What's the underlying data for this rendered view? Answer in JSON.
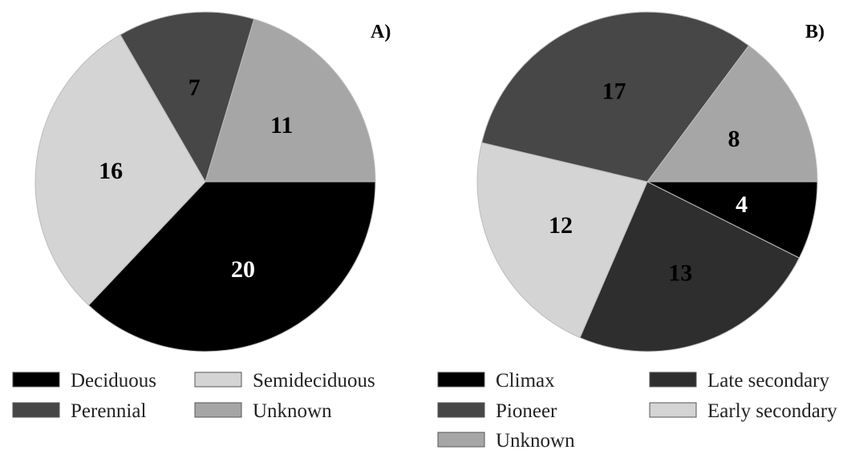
{
  "chart_data": [
    {
      "type": "pie",
      "panel_label": "A)",
      "slices": [
        {
          "label": "Deciduous",
          "value": 20,
          "color": "#000000",
          "text_color": "#ffffff"
        },
        {
          "label": "Semideciduous",
          "value": 16,
          "color": "#d4d4d4",
          "text_color": "#000000"
        },
        {
          "label": "Perennial",
          "value": 7,
          "color": "#474747",
          "text_color": "#000000"
        },
        {
          "label": "Unknown",
          "value": 11,
          "color": "#a6a6a6",
          "text_color": "#000000"
        }
      ],
      "legend": [
        {
          "label": "Deciduous",
          "color": "#000000"
        },
        {
          "label": "Semideciduous",
          "color": "#d4d4d4"
        },
        {
          "label": "Perennial",
          "color": "#474747"
        },
        {
          "label": "Unknown",
          "color": "#a6a6a6"
        }
      ],
      "legend_placement": "bottom"
    },
    {
      "type": "pie",
      "panel_label": "B)",
      "slices": [
        {
          "label": "Climax",
          "value": 4,
          "color": "#000000",
          "text_color": "#ffffff"
        },
        {
          "label": "Late secondary",
          "value": 13,
          "color": "#2e2e2e",
          "text_color": "#000000"
        },
        {
          "label": "Early secondary",
          "value": 12,
          "color": "#d4d4d4",
          "text_color": "#000000"
        },
        {
          "label": "Pioneer",
          "value": 17,
          "color": "#474747",
          "text_color": "#000000"
        },
        {
          "label": "Unknown",
          "value": 8,
          "color": "#a6a6a6",
          "text_color": "#000000"
        }
      ],
      "legend": [
        {
          "label": "Climax",
          "color": "#000000"
        },
        {
          "label": "Late secondary",
          "color": "#2e2e2e"
        },
        {
          "label": "Pioneer",
          "color": "#474747"
        },
        {
          "label": "Early secondary",
          "color": "#d4d4d4"
        },
        {
          "label": "Unknown",
          "color": "#a6a6a6"
        }
      ],
      "legend_placement": "bottom"
    }
  ]
}
